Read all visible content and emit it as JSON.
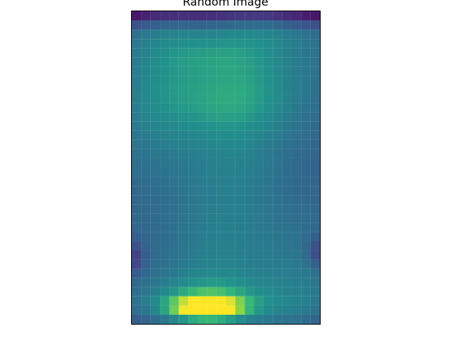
{
  "chart_data": {
    "type": "heatmap",
    "title": "Random Image",
    "colormap": "viridis",
    "grid": false,
    "axes_ticks": false,
    "rows": 34,
    "cols": 20
  }
}
